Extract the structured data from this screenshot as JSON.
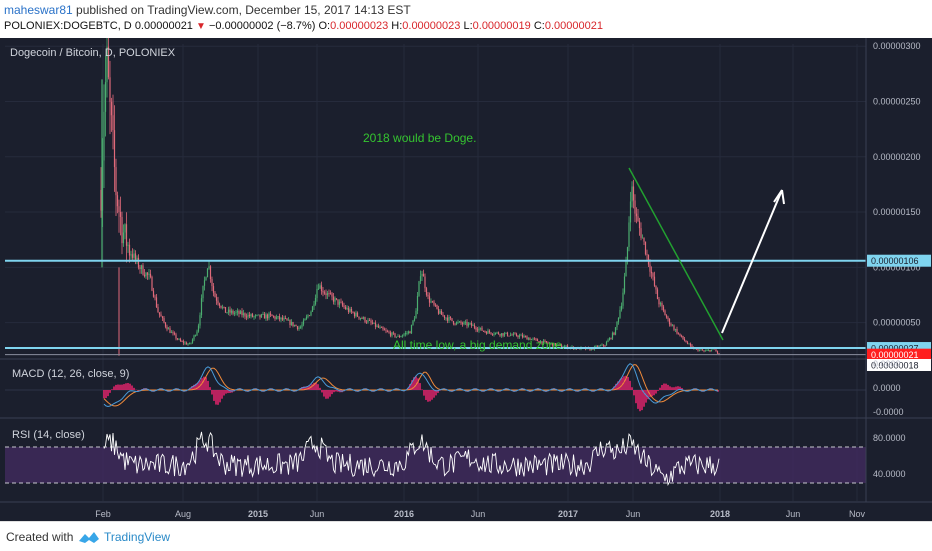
{
  "header": {
    "user": "maheswar81",
    "published_text": " published on TradingView.com, December 15, 2017 14:13 EST",
    "symbol_line": "POLONIEX:DOGEBTC, D",
    "last": "0.00000021",
    "change": "−0.00000002 (−8.7%)",
    "o_label": "O:",
    "o": "0.00000023",
    "h_label": "H:",
    "h": "0.00000023",
    "l_label": "L:",
    "l": "0.00000019",
    "c_label": "C:",
    "c": "0.00000021"
  },
  "footer": {
    "created_with": "Created with",
    "brand": "TradingView"
  },
  "colors": {
    "background": "#1b1f2d",
    "panel_bg": "#1e2233",
    "candle_up": "#4caf70",
    "candle_down": "#e06a7a",
    "support_line": "#7fd4ef",
    "trend_line": "#22a030",
    "arrow": "#ffffff",
    "annotation": "#35c530",
    "macd_line": "#4a9bd8",
    "signal_line": "#f08a3a",
    "histogram": "#e0246a",
    "rsi_line": "#ffffff",
    "rsi_band": "#3e2a5c",
    "price_label": "#ff1e1e"
  },
  "chart_data": [
    {
      "type": "candlestick",
      "title": "Dogecoin / Bitcoin, D, POLONIEX",
      "x_ticks": [
        "Feb",
        "Aug",
        "2015",
        "Jun",
        "2016",
        "Jun",
        "2017",
        "Jun",
        "2018",
        "Jun",
        "Nov"
      ],
      "y_ticks": [
        "0.00000300",
        "0.00000250",
        "0.00000200",
        "0.00000150",
        "0.00000100",
        "0.00000050"
      ],
      "ylim": [
        1.8e-07,
        3.02e-06
      ],
      "price_labels": [
        "0.00000106",
        "0.00000027",
        "0.00000021",
        "0.00000018"
      ],
      "support_lines": [
        1.06e-06,
        2.7e-07,
        2.1e-07
      ],
      "annotations": [
        "2018 would be Doge.",
        "All time low, a big demand zone."
      ],
      "approx_closes_by_month": {
        "x": [
          "2014-02",
          "2014-03",
          "2014-04",
          "2014-05",
          "2014-06",
          "2014-07",
          "2014-08",
          "2014-09",
          "2014-10",
          "2014-11",
          "2014-12",
          "2015-02",
          "2015-04",
          "2015-06",
          "2015-08",
          "2015-10",
          "2015-12",
          "2016-01",
          "2016-03",
          "2016-06",
          "2016-09",
          "2016-12",
          "2017-02",
          "2017-04",
          "2017-05",
          "2017-06",
          "2017-07",
          "2017-08",
          "2017-09",
          "2017-10",
          "2017-11",
          "2017-12"
        ],
        "y": [
          1.95e-06,
          1.5e-06,
          1e-06,
          6e-07,
          4e-07,
          3e-07,
          9e-07,
          6e-07,
          5e-07,
          5e-07,
          4e-07,
          5e-07,
          6e-07,
          8e-07,
          6e-07,
          4e-07,
          3e-07,
          8e-07,
          5e-07,
          4e-07,
          3e-07,
          2.5e-07,
          2.5e-07,
          4e-07,
          9e-07,
          1.4e-06,
          1e-06,
          6e-07,
          4e-07,
          2.7e-07,
          2.3e-07,
          2.1e-07
        ]
      }
    },
    {
      "type": "line",
      "title": "MACD (12, 26, close, 9)",
      "y_ticks": [
        "0.0000",
        "0.0000",
        "-0.0000"
      ],
      "series": [
        {
          "name": "MACD"
        },
        {
          "name": "Signal"
        },
        {
          "name": "Histogram"
        }
      ]
    },
    {
      "type": "line",
      "title": "RSI (14, close)",
      "y_ticks": [
        "80.0000",
        "40.0000"
      ],
      "ylim": [
        10,
        100
      ],
      "bands": [
        70,
        30
      ]
    }
  ]
}
